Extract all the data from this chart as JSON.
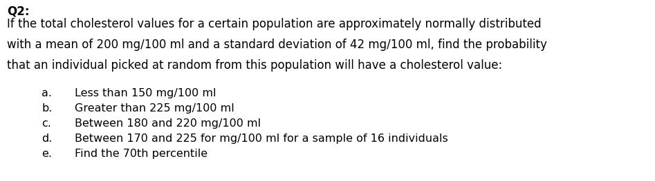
{
  "title": "Q2:",
  "lines": [
    "If the total cholesterol values for a certain population are approximately normally distributed",
    "with a mean of 200 mg/100 ml and a standard deviation of 42 mg/100 ml, find the probability",
    "that an individual picked at random from this population will have a cholesterol value:"
  ],
  "item_labels": [
    "a.",
    "b.",
    "c.",
    "d.",
    "e."
  ],
  "item_texts": [
    "Less than 150 mg/100 ml",
    "Greater than 225 mg/100 ml",
    "Between 180 and 220 mg/100 ml",
    "Between 170 and 225 for mg/100 ml for a sample of 16 individuals",
    "Find the 70th percentile"
  ],
  "bg_color": "#ffffff",
  "text_color": "#000000",
  "title_fontsize": 12,
  "body_fontsize": 12,
  "item_fontsize": 11.5
}
